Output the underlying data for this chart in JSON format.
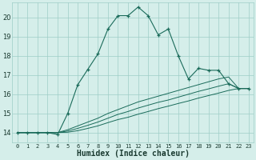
{
  "title": "",
  "xlabel": "Humidex (Indice chaleur)",
  "bg_color": "#d5eeea",
  "grid_color": "#9ecdc7",
  "line_color": "#1a6b5a",
  "xlim": [
    -0.5,
    23.5
  ],
  "ylim": [
    13.5,
    20.8
  ],
  "xticks": [
    0,
    1,
    2,
    3,
    4,
    5,
    6,
    7,
    8,
    9,
    10,
    11,
    12,
    13,
    14,
    15,
    16,
    17,
    18,
    19,
    20,
    21,
    22,
    23
  ],
  "yticks": [
    14,
    15,
    16,
    17,
    18,
    19,
    20
  ],
  "series1_x": [
    0,
    1,
    2,
    3,
    4,
    5,
    6,
    7,
    8,
    9,
    10,
    11,
    12,
    13,
    14,
    15,
    16,
    17,
    18,
    19,
    20,
    21,
    22,
    23
  ],
  "series1_y": [
    14.0,
    14.0,
    14.0,
    14.0,
    13.9,
    15.0,
    16.5,
    17.3,
    18.1,
    19.4,
    20.1,
    20.1,
    20.55,
    20.1,
    19.1,
    19.4,
    18.0,
    16.8,
    17.35,
    17.25,
    17.25,
    16.55,
    16.3,
    16.3
  ],
  "series2_x": [
    0,
    1,
    2,
    3,
    4,
    5,
    6,
    7,
    8,
    9,
    10,
    11,
    12,
    13,
    14,
    15,
    16,
    17,
    18,
    19,
    20,
    21,
    22,
    23
  ],
  "series2_y": [
    14.0,
    14.0,
    14.0,
    14.0,
    14.0,
    14.15,
    14.35,
    14.55,
    14.75,
    15.0,
    15.2,
    15.4,
    15.6,
    15.75,
    15.9,
    16.05,
    16.2,
    16.35,
    16.5,
    16.65,
    16.8,
    16.9,
    16.3,
    16.3
  ],
  "series3_x": [
    0,
    1,
    2,
    3,
    4,
    5,
    6,
    7,
    8,
    9,
    10,
    11,
    12,
    13,
    14,
    15,
    16,
    17,
    18,
    19,
    20,
    21,
    22,
    23
  ],
  "series3_y": [
    14.0,
    14.0,
    14.0,
    14.0,
    14.0,
    14.08,
    14.22,
    14.38,
    14.55,
    14.75,
    14.95,
    15.1,
    15.28,
    15.43,
    15.58,
    15.7,
    15.85,
    16.0,
    16.15,
    16.28,
    16.42,
    16.55,
    16.3,
    16.3
  ],
  "series4_x": [
    0,
    1,
    2,
    3,
    4,
    5,
    6,
    7,
    8,
    9,
    10,
    11,
    12,
    13,
    14,
    15,
    16,
    17,
    18,
    19,
    20,
    21,
    22,
    23
  ],
  "series4_y": [
    14.0,
    14.0,
    14.0,
    14.0,
    14.0,
    14.02,
    14.1,
    14.22,
    14.35,
    14.52,
    14.68,
    14.8,
    14.96,
    15.1,
    15.25,
    15.38,
    15.52,
    15.65,
    15.8,
    15.93,
    16.06,
    16.2,
    16.3,
    16.3
  ]
}
